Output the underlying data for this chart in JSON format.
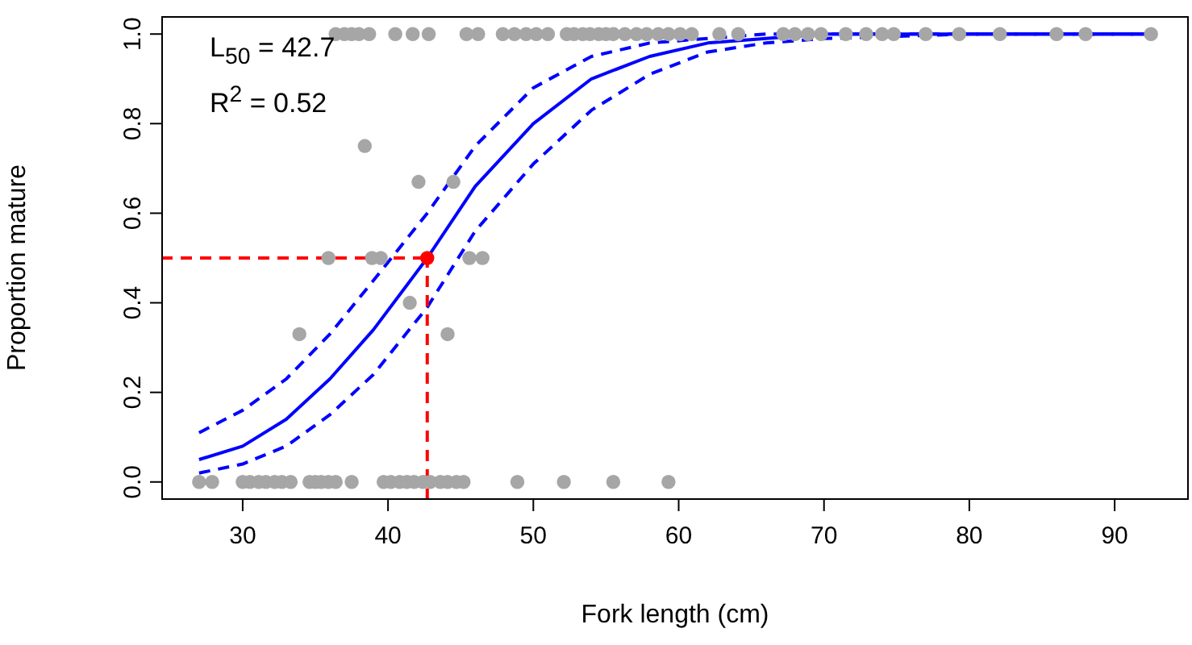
{
  "chart_data": {
    "type": "scatter",
    "xlabel": "Fork length (cm)",
    "ylabel": "Proportion mature",
    "annotations": [
      "L$_{50}$ = 42.7",
      "R$^{2}$ = 0.52"
    ],
    "xlim": [
      24.4,
      95.1
    ],
    "xticks": [
      30,
      40,
      50,
      60,
      70,
      80,
      90
    ],
    "ylim": [
      -0.04,
      1.04
    ],
    "yticks": [
      {
        "value": 0,
        "label": "0.0"
      },
      {
        "value": 0.2,
        "label": "0.2"
      },
      {
        "value": 0.4,
        "label": "0.4"
      },
      {
        "value": 0.6,
        "label": "0.6"
      },
      {
        "value": 0.8,
        "label": "0.8"
      },
      {
        "value": 1,
        "label": "1.0"
      }
    ],
    "grid": false,
    "legend": false,
    "series": [
      {
        "color": "#a6a6a6",
        "x": [
          27.0,
          27.9,
          30.0,
          30.5,
          31.1,
          31.6,
          32.2,
          32.7,
          33.3,
          34.6,
          35.0,
          35.4,
          35.9,
          36.4,
          37.5,
          39.7,
          40.2,
          40.8,
          41.3,
          41.8,
          42.4,
          42.9,
          43.6,
          44.1,
          44.7,
          45.2,
          48.9,
          52.1,
          55.5,
          59.3,
          38.4,
          42.1,
          44.5,
          35.9,
          38.9,
          39.5,
          45.6,
          46.5,
          41.5,
          33.9,
          44.1,
          36.4,
          37.0,
          37.5,
          38.0,
          38.7,
          40.5,
          41.7,
          42.8,
          45.4,
          46.2,
          47.9,
          48.7,
          49.5,
          50.2,
          51.0,
          52.3,
          52.8,
          53.4,
          53.9,
          54.5,
          55.0,
          55.5,
          56.3,
          57.1,
          57.8,
          58.6,
          59.3,
          60.1,
          60.9,
          62.8,
          64.1,
          67.2,
          68.0,
          68.9,
          69.8,
          71.5,
          72.9,
          74.0,
          74.8,
          77.0,
          79.3,
          82.1,
          86.0,
          88.0,
          92.5
        ],
        "values": [
          0,
          0,
          0,
          0,
          0,
          0,
          0,
          0,
          0,
          0,
          0,
          0,
          0,
          0,
          0,
          0,
          0,
          0,
          0,
          0,
          0,
          0,
          0,
          0,
          0,
          0,
          0,
          0,
          0,
          0,
          0.75,
          0.67,
          0.67,
          0.5,
          0.5,
          0.5,
          0.5,
          0.5,
          0.4,
          0.33,
          0.33,
          1,
          1,
          1,
          1,
          1,
          1,
          1,
          1,
          1,
          1,
          1,
          1,
          1,
          1,
          1,
          1,
          1,
          1,
          1,
          1,
          1,
          1,
          1,
          1,
          1,
          1,
          1,
          1,
          1,
          1,
          1,
          1,
          1,
          1,
          1,
          1,
          1,
          1,
          1,
          1,
          1,
          1,
          1,
          1,
          1
        ]
      },
      {
        "type": "line",
        "color": "#0000ff",
        "line_style": "solid",
        "x": [
          27,
          30,
          33,
          36,
          39,
          42.7,
          46,
          50,
          54,
          58,
          62,
          66,
          70,
          80,
          92.5
        ],
        "values": [
          0.05,
          0.08,
          0.14,
          0.23,
          0.34,
          0.5,
          0.66,
          0.8,
          0.9,
          0.95,
          0.98,
          0.99,
          1,
          1,
          1
        ]
      },
      {
        "type": "line",
        "color": "#0000ff",
        "line_style": "dashed",
        "x": [
          27,
          30,
          33,
          36,
          39,
          42.7,
          46,
          50,
          54,
          58,
          62,
          66,
          70,
          80,
          92.5
        ],
        "values": [
          0.02,
          0.04,
          0.08,
          0.15,
          0.24,
          0.39,
          0.56,
          0.71,
          0.83,
          0.91,
          0.96,
          0.98,
          0.99,
          1,
          1
        ]
      },
      {
        "type": "line",
        "color": "#0000ff",
        "line_style": "dashed",
        "x": [
          27,
          30,
          33,
          36,
          39,
          42.7,
          46,
          50,
          54,
          58,
          62,
          66,
          70,
          80,
          92.5
        ],
        "values": [
          0.11,
          0.16,
          0.23,
          0.33,
          0.45,
          0.6,
          0.75,
          0.88,
          0.95,
          0.98,
          0.99,
          1,
          1,
          1,
          1
        ]
      },
      {
        "type": "line",
        "color": "#ff0000",
        "line_style": "dashed",
        "x": [
          24.4,
          42.7
        ],
        "values": [
          0.5,
          0.5
        ]
      },
      {
        "type": "line",
        "color": "#ff0000",
        "line_style": "dashed",
        "x": [
          42.7,
          42.7
        ],
        "values": [
          -0.04,
          0.5
        ]
      },
      {
        "color": "#ff0000",
        "x": [
          42.7
        ],
        "values": [
          0.5
        ]
      }
    ]
  }
}
